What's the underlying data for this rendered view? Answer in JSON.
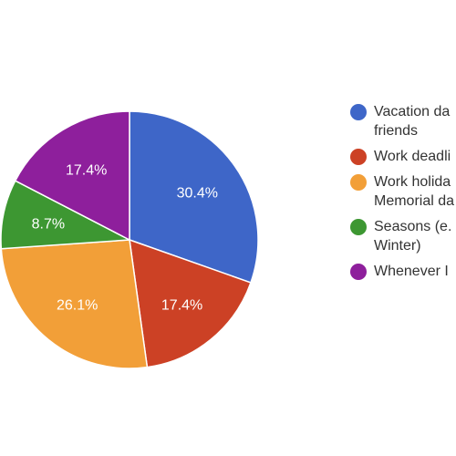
{
  "chart_data": {
    "type": "pie",
    "slices": [
      {
        "label": "Vacation days with friends",
        "legend_text": "Vacation da\nfriends",
        "value": 30.4,
        "value_label": "30.4%",
        "color": "#3e66c8"
      },
      {
        "label": "Work deadlines",
        "legend_text": "Work deadli",
        "value": 17.4,
        "value_label": "17.4%",
        "color": "#cc4125"
      },
      {
        "label": "Work holidays / Memorial day",
        "legend_text": "Work holida\nMemorial da",
        "value": 26.1,
        "value_label": "26.1%",
        "color": "#f29f38"
      },
      {
        "label": "Seasons (e.g. Winter)",
        "legend_text": "Seasons (e.\nWinter)",
        "value": 8.7,
        "value_label": "8.7%",
        "color": "#3d9732"
      },
      {
        "label": "Whenever I",
        "legend_text": "Whenever I",
        "value": 17.4,
        "value_label": "17.4%",
        "color": "#8e1f9c"
      }
    ],
    "start_angle_deg": 90,
    "direction": "clockwise",
    "legend_position": "right"
  }
}
